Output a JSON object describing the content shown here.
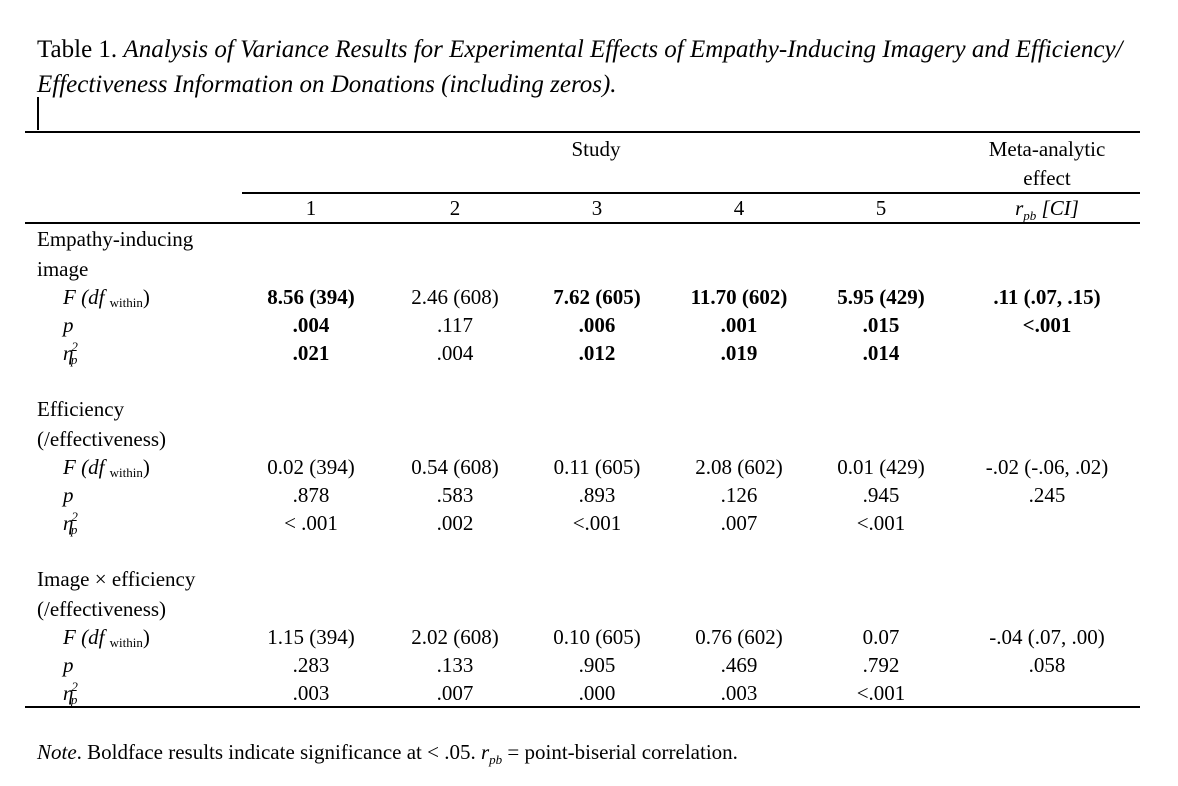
{
  "title": {
    "label": "Table 1.",
    "text": "Analysis of Variance Results for Experimental Effects of Empathy-Inducing Imagery and Efficiency/ Effectiveness Information on Donations (including zeros)."
  },
  "header": {
    "study": "Study",
    "meta_line1": "Meta-analytic",
    "meta_line2": "effect",
    "columns": [
      "1",
      "2",
      "3",
      "4",
      "5"
    ],
    "meta_r": "r",
    "meta_r_sub": "pb",
    "meta_ci": "[CI]"
  },
  "stat_labels": {
    "f": "F (df",
    "f_sub": "within",
    "f_close": ")",
    "p": "p",
    "eta": "η",
    "eta_sub": "p",
    "eta_sup": "2"
  },
  "sections": [
    {
      "label_line1": "Empathy-inducing",
      "label_line2": "image",
      "f": [
        "8.56 (394)",
        "2.46 (608)",
        "7.62 (605)",
        "11.70 (602)",
        "5.95 (429)",
        ".11 (.07, .15)"
      ],
      "p": [
        ".004",
        ".117",
        ".006",
        ".001",
        ".015",
        "<.001"
      ],
      "eta": [
        ".021",
        ".004",
        ".012",
        ".019",
        ".014",
        ""
      ]
    },
    {
      "label_line1": "Efficiency",
      "label_line2": "(/effectiveness)",
      "f": [
        "0.02 (394)",
        "0.54 (608)",
        "0.11 (605)",
        "2.08 (602)",
        "0.01 (429)",
        "-.02 (-.06, .02)"
      ],
      "p": [
        ".878",
        ".583",
        ".893",
        ".126",
        ".945",
        ".245"
      ],
      "eta": [
        "< .001",
        ".002",
        "<.001",
        ".007",
        "<.001",
        ""
      ]
    },
    {
      "label_line1": "Image × efficiency",
      "label_line2": "(/effectiveness)",
      "f": [
        "1.15 (394)",
        "2.02 (608)",
        "0.10 (605)",
        "0.76 (602)",
        "0.07",
        "-.04 (.07, .00)"
      ],
      "p": [
        ".283",
        ".133",
        ".905",
        ".469",
        ".792",
        ".058"
      ],
      "eta": [
        ".003",
        ".007",
        ".000",
        ".003",
        "<.001",
        ""
      ]
    }
  ],
  "note": {
    "label": "Note",
    "text_a": ". Boldface results indicate significance at < .05. ",
    "r": "r",
    "r_sub": "pb",
    "text_b": " = point-biserial correlation."
  }
}
